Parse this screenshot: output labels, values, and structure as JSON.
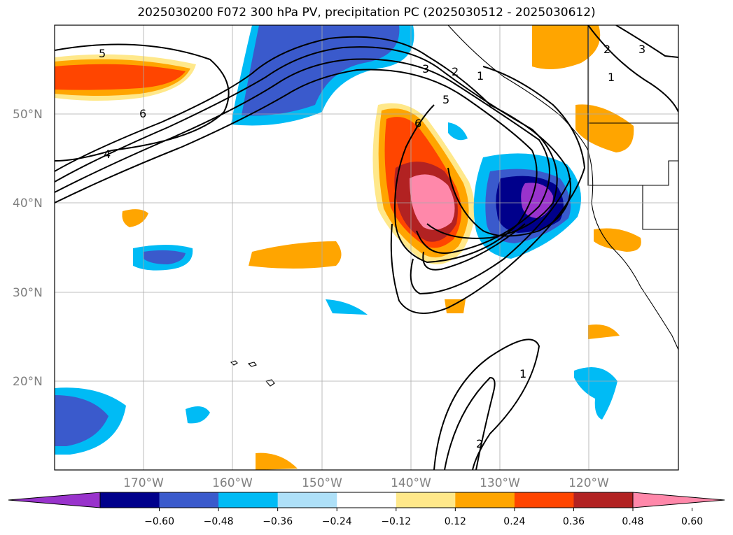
{
  "title": "2025030200 F072 300 hPa PV, precipitation PC (2025030512 - 2025030612)",
  "lat_labels": [
    "50°N",
    "40°N",
    "30°N",
    "20°N"
  ],
  "lon_labels": [
    "170°W",
    "160°W",
    "150°W",
    "140°W",
    "130°W",
    "120°W"
  ],
  "contour_labels": [
    "5",
    "6",
    "4",
    "3",
    "2",
    "1",
    "5",
    "6",
    "3",
    "2",
    "1",
    "2",
    "1"
  ],
  "colorbar": {
    "ticks": [
      "−0.60",
      "−0.48",
      "−0.36",
      "−0.24",
      "−0.12",
      "0.12",
      "0.24",
      "0.36",
      "0.48",
      "0.60"
    ],
    "colors": [
      "#9933cc",
      "#00008b",
      "#3a5acc",
      "#00bbf5",
      "#aee0f8",
      "#ffffff",
      "#ffe88a",
      "#ffa500",
      "#ff4500",
      "#b22222",
      "#ff88aa"
    ]
  }
}
